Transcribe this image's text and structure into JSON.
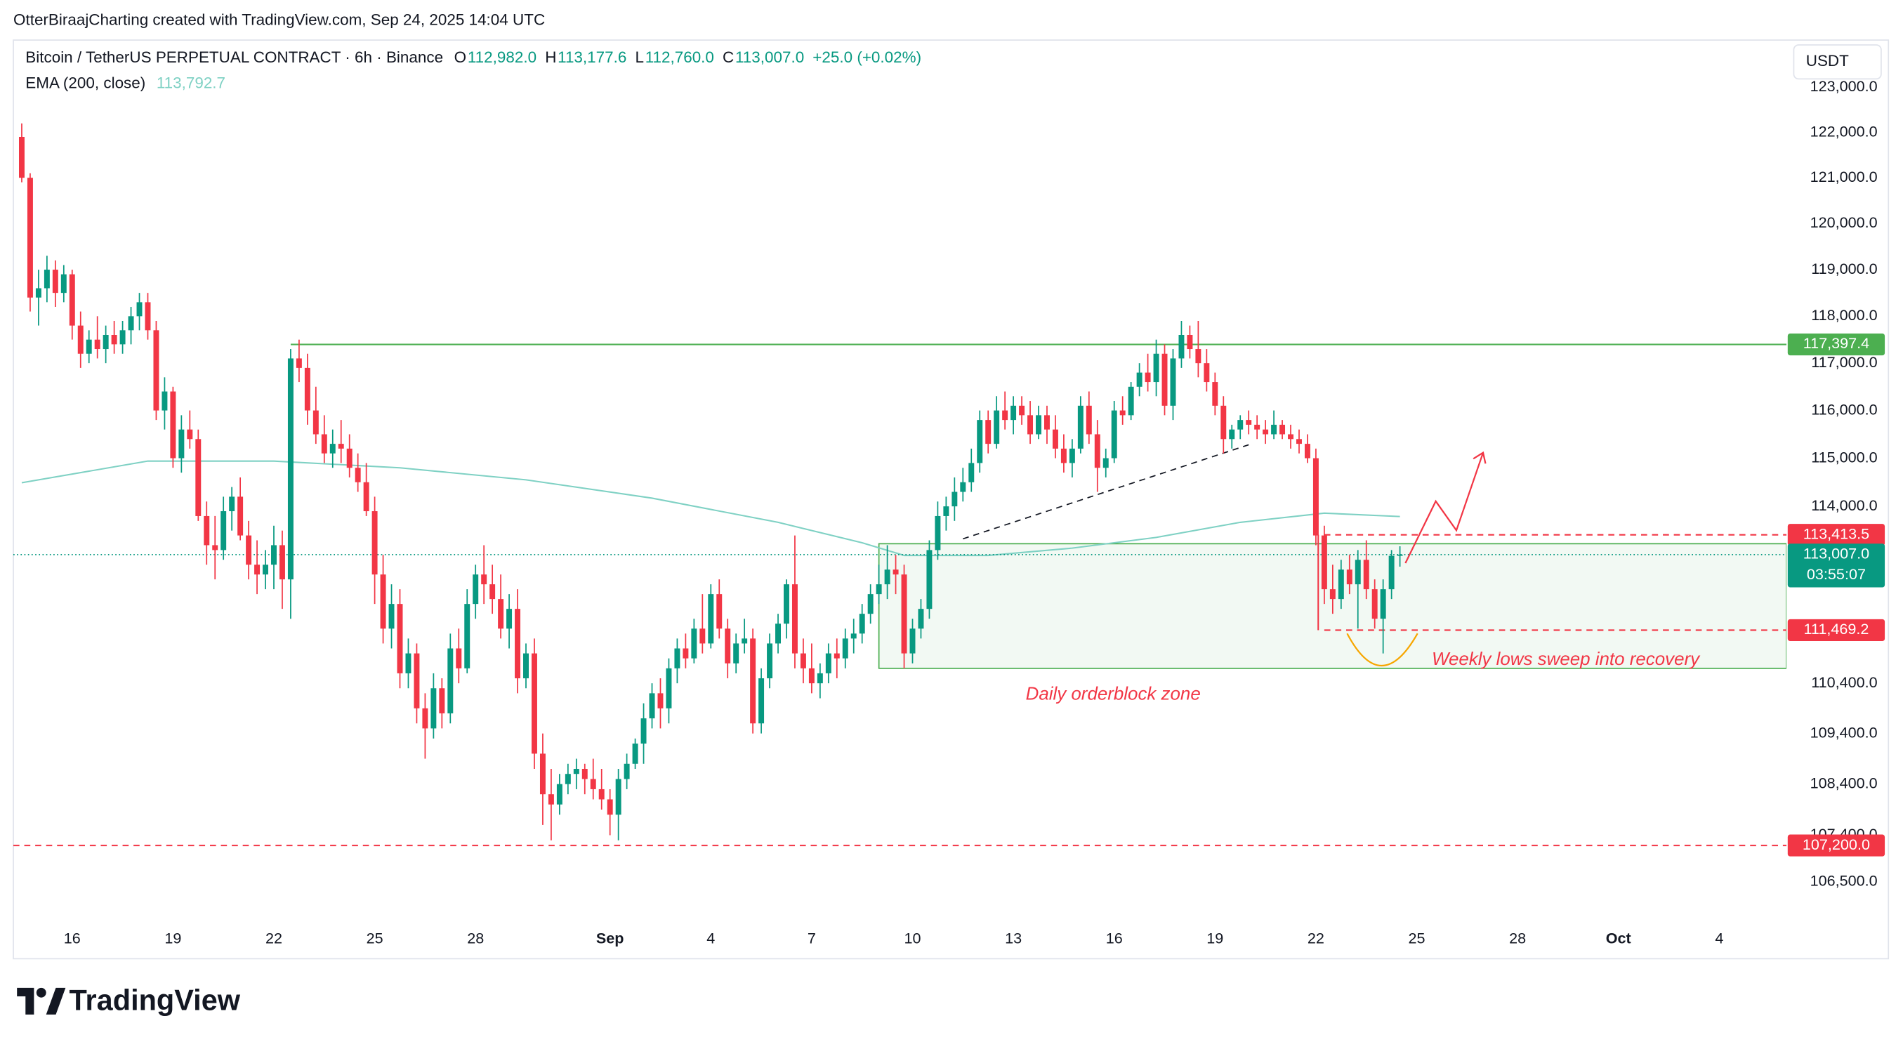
{
  "header": {
    "attribution": "OtterBiraajCharting created with TradingView.com, Sep 24, 2025 14:04 UTC"
  },
  "footer": {
    "logo": "TradingView"
  },
  "chart_data": {
    "type": "candlestick",
    "symbol": "Bitcoin / TetherUS PERPETUAL CONTRACT · 6h · Binance",
    "ohlc_legend": [
      {
        "key": "O",
        "value": 112982.0,
        "label": "112,982.0"
      },
      {
        "key": "H",
        "value": 113177.6,
        "label": "113,177.6"
      },
      {
        "key": "L",
        "value": 112760.0,
        "label": "112,760.0"
      },
      {
        "key": "C",
        "value": 113007.0,
        "label": "113,007.0"
      }
    ],
    "change": {
      "value": 25.0,
      "label": "+25.0 (+0.02%)"
    },
    "currency": "USDT",
    "up_color": "#089981",
    "down_color": "#f23645",
    "log_scale": true,
    "grid": false,
    "xlim": [
      -1,
      210
    ],
    "ylim": [
      105600,
      124060
    ],
    "xticks": [
      {
        "value": 6,
        "label": "16"
      },
      {
        "value": 18,
        "label": "19"
      },
      {
        "value": 30,
        "label": "22"
      },
      {
        "value": 42,
        "label": "25"
      },
      {
        "value": 54,
        "label": "28"
      },
      {
        "value": 70,
        "label": "Sep"
      },
      {
        "value": 82,
        "label": "4"
      },
      {
        "value": 94,
        "label": "7"
      },
      {
        "value": 106,
        "label": "10"
      },
      {
        "value": 118,
        "label": "13"
      },
      {
        "value": 130,
        "label": "16"
      },
      {
        "value": 142,
        "label": "19"
      },
      {
        "value": 154,
        "label": "22"
      },
      {
        "value": 166,
        "label": "25"
      },
      {
        "value": 178,
        "label": "28"
      },
      {
        "value": 190,
        "label": "Oct"
      },
      {
        "value": 202,
        "label": "4"
      }
    ],
    "yticks": [
      {
        "value": 123000,
        "label": "123,000.0"
      },
      {
        "value": 122000,
        "label": "122,000.0"
      },
      {
        "value": 121000,
        "label": "121,000.0"
      },
      {
        "value": 120000,
        "label": "120,000.0"
      },
      {
        "value": 119000,
        "label": "119,000.0"
      },
      {
        "value": 118000,
        "label": "118,000.0"
      },
      {
        "value": 117000,
        "label": "117,000.0"
      },
      {
        "value": 116000,
        "label": "116,000.0"
      },
      {
        "value": 115000,
        "label": "115,000.0"
      },
      {
        "value": 114000,
        "label": "114,000.0"
      },
      {
        "value": 110400,
        "label": "110,400.0"
      },
      {
        "value": 109400,
        "label": "109,400.0"
      },
      {
        "value": 108400,
        "label": "108,400.0"
      },
      {
        "value": 107400,
        "label": "107,400.0"
      },
      {
        "value": 106500,
        "label": "106,500.0"
      }
    ],
    "candles": [
      [
        121900,
        122200,
        120900,
        121000
      ],
      [
        121000,
        121100,
        118100,
        118400
      ],
      [
        118400,
        119000,
        117800,
        118600
      ],
      [
        118600,
        119300,
        118300,
        119000
      ],
      [
        119000,
        119200,
        118200,
        118500
      ],
      [
        118500,
        119100,
        118300,
        118900
      ],
      [
        118900,
        119000,
        117500,
        117800
      ],
      [
        117800,
        118100,
        116900,
        117200
      ],
      [
        117200,
        117700,
        117000,
        117500
      ],
      [
        117500,
        118000,
        117100,
        117300
      ],
      [
        117300,
        117800,
        117000,
        117600
      ],
      [
        117600,
        117900,
        117200,
        117400
      ],
      [
        117400,
        117900,
        117200,
        117700
      ],
      [
        117700,
        118200,
        117400,
        118000
      ],
      [
        118000,
        118500,
        117700,
        118300
      ],
      [
        118300,
        118500,
        117500,
        117700
      ],
      [
        117700,
        117900,
        115800,
        116000
      ],
      [
        116000,
        116700,
        115600,
        116400
      ],
      [
        116400,
        116500,
        114800,
        115000
      ],
      [
        115000,
        115900,
        114700,
        115600
      ],
      [
        115600,
        116000,
        115200,
        115400
      ],
      [
        115400,
        115600,
        113700,
        113800
      ],
      [
        113800,
        114100,
        112800,
        113200
      ],
      [
        113200,
        113800,
        112500,
        113100
      ],
      [
        113100,
        114200,
        112900,
        113900
      ],
      [
        113900,
        114400,
        113500,
        114200
      ],
      [
        114200,
        114600,
        113300,
        113400
      ],
      [
        113400,
        113700,
        112500,
        112800
      ],
      [
        112800,
        113300,
        112200,
        112600
      ],
      [
        112600,
        113100,
        112300,
        112800
      ],
      [
        112800,
        113600,
        112300,
        113200
      ],
      [
        113200,
        113500,
        111900,
        112500
      ],
      [
        112500,
        117300,
        111700,
        117100
      ],
      [
        117100,
        117500,
        116600,
        116900
      ],
      [
        116900,
        117200,
        115700,
        116000
      ],
      [
        116000,
        116500,
        115300,
        115500
      ],
      [
        115500,
        115900,
        114900,
        115100
      ],
      [
        115100,
        115600,
        114800,
        115300
      ],
      [
        115300,
        115800,
        114900,
        115200
      ],
      [
        115200,
        115500,
        114600,
        114800
      ],
      [
        114800,
        115100,
        114300,
        114500
      ],
      [
        114500,
        114900,
        113800,
        113900
      ],
      [
        113900,
        114200,
        112000,
        112600
      ],
      [
        112600,
        113000,
        111200,
        111500
      ],
      [
        111500,
        112400,
        111100,
        112000
      ],
      [
        112000,
        112300,
        110300,
        110600
      ],
      [
        110600,
        111300,
        110300,
        111000
      ],
      [
        111000,
        111200,
        109600,
        109900
      ],
      [
        109900,
        110200,
        108900,
        109500
      ],
      [
        109500,
        110600,
        109300,
        110300
      ],
      [
        110300,
        110500,
        109500,
        109800
      ],
      [
        109800,
        111400,
        109600,
        111100
      ],
      [
        111100,
        111500,
        110400,
        110700
      ],
      [
        110700,
        112300,
        110600,
        112000
      ],
      [
        112000,
        112800,
        111700,
        112600
      ],
      [
        112600,
        113200,
        112000,
        112400
      ],
      [
        112400,
        112800,
        111800,
        112100
      ],
      [
        112100,
        112600,
        111300,
        111500
      ],
      [
        111500,
        112200,
        111100,
        111900
      ],
      [
        111900,
        112300,
        110200,
        110500
      ],
      [
        110500,
        111200,
        110300,
        111000
      ],
      [
        111000,
        111300,
        108700,
        109000
      ],
      [
        109000,
        109400,
        107600,
        108200
      ],
      [
        108200,
        108700,
        107300,
        108000
      ],
      [
        108000,
        108600,
        107800,
        108400
      ],
      [
        108400,
        108800,
        108200,
        108600
      ],
      [
        108600,
        108900,
        108300,
        108700
      ],
      [
        108700,
        108800,
        108200,
        108500
      ],
      [
        108500,
        108900,
        108100,
        108300
      ],
      [
        108300,
        108700,
        107900,
        108100
      ],
      [
        108100,
        108300,
        107400,
        107800
      ],
      [
        107800,
        108700,
        107300,
        108500
      ],
      [
        108500,
        109000,
        108300,
        108800
      ],
      [
        108800,
        109300,
        108700,
        109200
      ],
      [
        109200,
        110000,
        108800,
        109700
      ],
      [
        109700,
        110400,
        109500,
        110200
      ],
      [
        110200,
        110500,
        109500,
        109900
      ],
      [
        109900,
        110900,
        109600,
        110700
      ],
      [
        110700,
        111300,
        110400,
        111100
      ],
      [
        111100,
        111400,
        110700,
        110900
      ],
      [
        110900,
        111700,
        110800,
        111500
      ],
      [
        111500,
        112200,
        111000,
        111200
      ],
      [
        111200,
        112400,
        111100,
        112200
      ],
      [
        112200,
        112500,
        111300,
        111500
      ],
      [
        111500,
        111700,
        110500,
        110800
      ],
      [
        110800,
        111400,
        110600,
        111200
      ],
      [
        111200,
        111700,
        111000,
        111300
      ],
      [
        111300,
        111500,
        109400,
        109600
      ],
      [
        109600,
        110700,
        109400,
        110500
      ],
      [
        110500,
        111400,
        110300,
        111200
      ],
      [
        111200,
        111800,
        111000,
        111600
      ],
      [
        111600,
        112500,
        111300,
        112400
      ],
      [
        112400,
        113400,
        110700,
        111000
      ],
      [
        111000,
        111300,
        110400,
        110700
      ],
      [
        110700,
        111200,
        110200,
        110400
      ],
      [
        110400,
        110800,
        110100,
        110600
      ],
      [
        110600,
        111200,
        110400,
        111000
      ],
      [
        111000,
        111300,
        110500,
        110900
      ],
      [
        110900,
        111500,
        110700,
        111300
      ],
      [
        111300,
        111700,
        111000,
        111400
      ],
      [
        111400,
        112000,
        111200,
        111800
      ],
      [
        111800,
        112400,
        111600,
        112200
      ],
      [
        112200,
        112800,
        112000,
        112400
      ],
      [
        112400,
        113200,
        112100,
        112700
      ],
      [
        112700,
        113000,
        112200,
        112600
      ],
      [
        112600,
        112800,
        110700,
        111000
      ],
      [
        111000,
        111700,
        110800,
        111500
      ],
      [
        111500,
        112100,
        111300,
        111900
      ],
      [
        111900,
        113300,
        111700,
        113100
      ],
      [
        113100,
        114100,
        112900,
        113800
      ],
      [
        113800,
        114200,
        113500,
        114000
      ],
      [
        114000,
        114600,
        113700,
        114300
      ],
      [
        114300,
        114800,
        114100,
        114500
      ],
      [
        114500,
        115200,
        114300,
        114900
      ],
      [
        114900,
        116000,
        114700,
        115800
      ],
      [
        115800,
        116000,
        115100,
        115300
      ],
      [
        115300,
        116300,
        115200,
        116000
      ],
      [
        116000,
        116400,
        115600,
        115800
      ],
      [
        115800,
        116300,
        115500,
        116100
      ],
      [
        116100,
        116300,
        115700,
        115900
      ],
      [
        115900,
        116200,
        115300,
        115500
      ],
      [
        115500,
        116100,
        115400,
        115900
      ],
      [
        115900,
        116100,
        115300,
        115600
      ],
      [
        115600,
        115900,
        115000,
        115200
      ],
      [
        115200,
        115500,
        114700,
        114900
      ],
      [
        114900,
        115400,
        114600,
        115200
      ],
      [
        115200,
        116300,
        115100,
        116100
      ],
      [
        116100,
        116400,
        115300,
        115500
      ],
      [
        115500,
        115800,
        114300,
        114800
      ],
      [
        114800,
        115200,
        114600,
        115000
      ],
      [
        115000,
        116200,
        114900,
        116000
      ],
      [
        116000,
        116300,
        115700,
        115900
      ],
      [
        115900,
        116600,
        115800,
        116500
      ],
      [
        116500,
        117000,
        116300,
        116800
      ],
      [
        116800,
        117200,
        116400,
        116600
      ],
      [
        116600,
        117500,
        116300,
        117200
      ],
      [
        117200,
        117400,
        115900,
        116100
      ],
      [
        116100,
        117300,
        115800,
        117100
      ],
      [
        117100,
        117900,
        116900,
        117600
      ],
      [
        117600,
        117800,
        117100,
        117300
      ],
      [
        117300,
        117900,
        116700,
        117000
      ],
      [
        117000,
        117300,
        116400,
        116600
      ],
      [
        116600,
        116800,
        115900,
        116100
      ],
      [
        116100,
        116300,
        115100,
        115400
      ],
      [
        115400,
        115700,
        115200,
        115600
      ],
      [
        115600,
        115900,
        115400,
        115800
      ],
      [
        115800,
        116000,
        115500,
        115700
      ],
      [
        115700,
        115900,
        115400,
        115600
      ],
      [
        115600,
        115800,
        115300,
        115500
      ],
      [
        115500,
        116000,
        115400,
        115700
      ],
      [
        115700,
        115800,
        115400,
        115500
      ],
      [
        115500,
        115700,
        115200,
        115400
      ],
      [
        115400,
        115600,
        115100,
        115300
      ],
      [
        115300,
        115500,
        114900,
        115000
      ],
      [
        115000,
        115200,
        113200,
        113400
      ],
      [
        113400,
        113600,
        112000,
        112300
      ],
      [
        112300,
        112800,
        111800,
        112100
      ],
      [
        112100,
        112900,
        111900,
        112700
      ],
      [
        112700,
        113000,
        112200,
        112400
      ],
      [
        112400,
        113100,
        111500,
        112900
      ],
      [
        112900,
        113300,
        112100,
        112300
      ],
      [
        112300,
        112500,
        111500,
        111700
      ],
      [
        111700,
        112500,
        111000,
        112300
      ],
      [
        112300,
        113100,
        112100,
        112982
      ],
      [
        112982,
        113177.6,
        112760,
        113007
      ]
    ],
    "ema": {
      "name": "EMA (200, close)",
      "color": "#7fd1c4",
      "last": {
        "value": 113792.7,
        "label": "113,792.7"
      },
      "x": [
        0,
        15,
        30,
        45,
        60,
        75,
        90,
        100,
        105,
        115,
        125,
        135,
        145,
        155,
        164
      ],
      "values": [
        114490,
        114940,
        114940,
        114800,
        114550,
        114170,
        113670,
        113250,
        112990,
        112990,
        113140,
        113360,
        113670,
        113860,
        113790
      ]
    },
    "trendlines": [
      {
        "x": [
          112,
          146
        ],
        "values": [
          113330,
          115280
        ],
        "color": "#131722"
      }
    ],
    "last_price": {
      "value": 113007.0,
      "label": "113,007.0",
      "countdown": "03:55:07",
      "color": "#089981"
    },
    "levels": [
      {
        "value": 117397.4,
        "label": "117,397.4",
        "color": "#4caf50",
        "x_start": 32,
        "dashed": false
      },
      {
        "value": 113413.5,
        "label": "113,413.5",
        "color": "#f23645",
        "x_start": 155,
        "dashed": true
      },
      {
        "value": 111469.2,
        "label": "111,469.2",
        "color": "#f23645",
        "x_start": 155,
        "dashed": true
      },
      {
        "value": 107200.0,
        "label": "107,200.0",
        "color": "#f23645",
        "x_start": -1,
        "dashed": true
      }
    ],
    "zones": [
      {
        "label": "Daily orderblock zone",
        "range": [
          110700,
          113230
        ],
        "x_start": 102,
        "color": "#4caf50"
      }
    ],
    "annotations": [
      {
        "text": "Weekly lows sweep into recovery",
        "color": "#f23645"
      }
    ]
  }
}
